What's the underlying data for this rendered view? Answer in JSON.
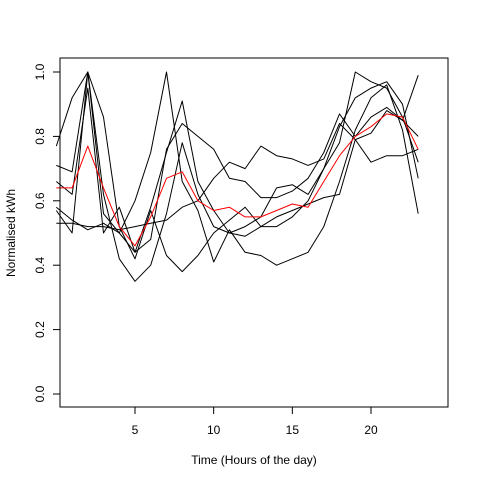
{
  "chart_data": {
    "type": "line",
    "title": "",
    "xlabel": "Time (Hours of the day)",
    "ylabel": "Normalised kWh",
    "xlim": [
      0,
      24
    ],
    "ylim": [
      0,
      1
    ],
    "x_ticks": [
      5,
      10,
      15,
      20
    ],
    "y_ticks": [
      0.0,
      0.2,
      0.4,
      0.6,
      0.8,
      1.0
    ],
    "x_tick_labels": [
      "5",
      "10",
      "15",
      "20"
    ],
    "y_tick_labels": [
      "0.0",
      "0.2",
      "0.4",
      "0.6",
      "0.8",
      "1.0"
    ],
    "grid": false,
    "legend": "none",
    "x": [
      0,
      1,
      2,
      3,
      4,
      5,
      6,
      7,
      8,
      9,
      10,
      11,
      12,
      13,
      14,
      15,
      16,
      17,
      18,
      19,
      20,
      21,
      22,
      23
    ],
    "series": [
      {
        "color": "#000000",
        "values": [
          0.71,
          0.69,
          1.0,
          0.62,
          0.42,
          0.35,
          0.4,
          0.56,
          0.78,
          0.62,
          0.52,
          0.5,
          0.52,
          0.55,
          0.64,
          0.65,
          0.62,
          0.7,
          0.83,
          0.92,
          0.95,
          0.97,
          0.9,
          0.67
        ]
      },
      {
        "color": "#000000",
        "values": [
          0.77,
          0.92,
          1.0,
          0.56,
          0.5,
          0.6,
          0.75,
          1.0,
          0.66,
          0.57,
          0.41,
          0.51,
          0.44,
          0.43,
          0.4,
          0.42,
          0.44,
          0.52,
          0.66,
          0.82,
          0.92,
          0.96,
          0.82,
          0.56
        ]
      },
      {
        "color": "#000000",
        "values": [
          0.57,
          0.5,
          1.0,
          0.86,
          0.52,
          0.42,
          0.57,
          0.43,
          0.38,
          0.43,
          0.5,
          0.54,
          0.58,
          0.52,
          0.52,
          0.55,
          0.6,
          0.7,
          0.78,
          1.0,
          0.97,
          0.95,
          0.86,
          0.72
        ]
      },
      {
        "color": "#000000",
        "values": [
          0.53,
          0.53,
          0.52,
          0.52,
          0.51,
          0.52,
          0.53,
          0.54,
          0.58,
          0.6,
          0.67,
          0.72,
          0.7,
          0.77,
          0.74,
          0.73,
          0.71,
          0.73,
          0.84,
          0.79,
          0.81,
          0.88,
          0.85,
          0.99
        ]
      },
      {
        "color": "#000000",
        "values": [
          0.58,
          0.54,
          0.51,
          0.53,
          0.5,
          0.44,
          0.58,
          0.75,
          0.91,
          0.66,
          0.57,
          0.5,
          0.49,
          0.52,
          0.55,
          0.57,
          0.59,
          0.61,
          0.62,
          0.79,
          0.72,
          0.74,
          0.74,
          0.76
        ]
      },
      {
        "color": "#000000",
        "values": [
          0.66,
          0.62,
          0.95,
          0.5,
          0.58,
          0.44,
          0.48,
          0.76,
          0.84,
          0.8,
          0.76,
          0.67,
          0.66,
          0.61,
          0.61,
          0.63,
          0.67,
          0.75,
          0.87,
          0.8,
          0.86,
          0.89,
          0.85,
          0.8
        ]
      },
      {
        "color": "#ff0000",
        "values": [
          0.64,
          0.64,
          0.77,
          0.64,
          0.52,
          0.46,
          0.55,
          0.67,
          0.69,
          0.6,
          0.57,
          0.58,
          0.55,
          0.55,
          0.57,
          0.59,
          0.58,
          0.66,
          0.74,
          0.8,
          0.83,
          0.87,
          0.86,
          0.76
        ]
      }
    ]
  }
}
